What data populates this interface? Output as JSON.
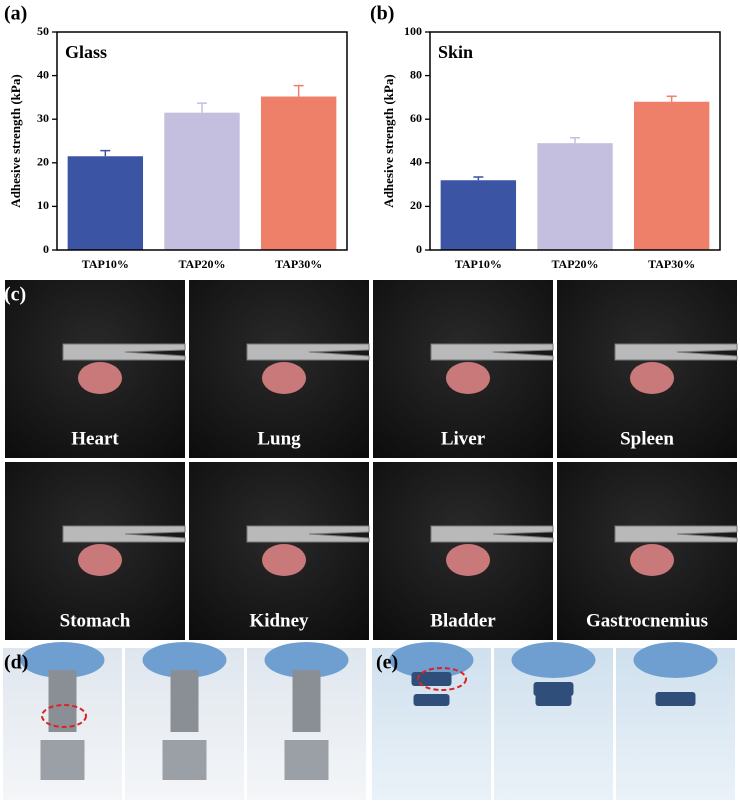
{
  "chart_data": [
    {
      "type": "bar",
      "title": "Glass",
      "y_label": "Adhesive strength (kPa)",
      "categories": [
        "TAP10%",
        "TAP20%",
        "TAP30%"
      ],
      "values": [
        21.5,
        31.5,
        35.2
      ],
      "errors": [
        1.3,
        2.2,
        2.5
      ],
      "colors": [
        "#3b54a3",
        "#c4bfdf",
        "#ee8069"
      ],
      "ylim": [
        0,
        50
      ],
      "yticks": [
        0,
        10,
        20,
        30,
        40,
        50
      ]
    },
    {
      "type": "bar",
      "title": "Skin",
      "y_label": "Adhesive strength (kPa)",
      "categories": [
        "TAP10%",
        "TAP20%",
        "TAP30%"
      ],
      "values": [
        32,
        49,
        68
      ],
      "errors": [
        1.5,
        2.5,
        2.5
      ],
      "colors": [
        "#3b54a3",
        "#c4bfdf",
        "#ee8069"
      ],
      "ylim": [
        0,
        100
      ],
      "yticks": [
        0,
        20,
        40,
        60,
        80,
        100
      ]
    }
  ],
  "panel_labels": [
    "(a)",
    "(b)",
    "(c)",
    "(d)",
    "(e)"
  ],
  "photos": [
    "Heart",
    "Lung",
    "Liver",
    "Spleen",
    "Stomach",
    "Kidney",
    "Bladder",
    "Gastrocnemius"
  ]
}
